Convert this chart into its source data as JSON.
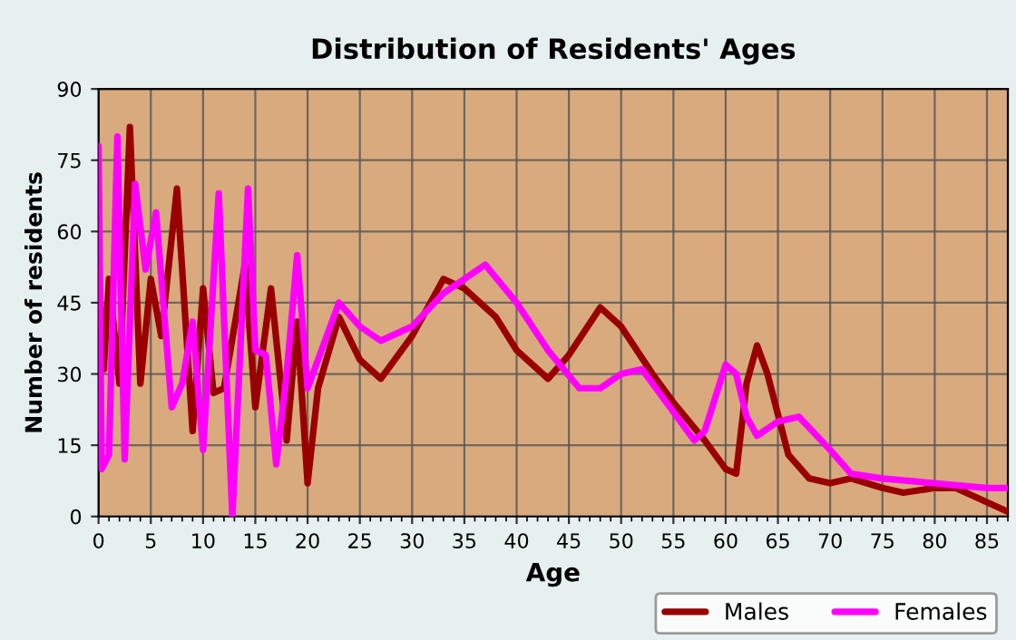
{
  "chart_data": {
    "type": "line",
    "title": "Distribution of Residents' Ages",
    "xlabel": "Age",
    "ylabel": "Number of residents",
    "xlim": [
      0,
      87
    ],
    "xticks": [
      0,
      5,
      10,
      15,
      20,
      25,
      30,
      35,
      40,
      45,
      50,
      55,
      60,
      65,
      70,
      75,
      80,
      85
    ],
    "ylim": [
      0,
      90
    ],
    "yticks": [
      0,
      15,
      30,
      45,
      60,
      75,
      90
    ],
    "grid": true,
    "legend": "bottom right",
    "marker": "none",
    "line_style": "solid",
    "series": [
      {
        "name": "Males",
        "color": "#990000",
        "x": [
          0,
          0.5,
          1,
          2,
          3,
          4,
          5,
          6,
          7.5,
          9,
          10,
          11,
          12,
          14,
          15,
          16.5,
          18,
          19,
          20,
          21,
          23,
          25,
          27,
          30,
          33,
          35,
          38,
          40,
          43,
          45,
          48,
          50,
          53,
          55,
          58,
          60,
          61,
          62,
          63,
          64,
          66,
          68,
          70,
          72,
          75,
          77,
          80,
          82,
          85,
          87
        ],
        "values": [
          52,
          31,
          50,
          28,
          82,
          28,
          50,
          38,
          69,
          18,
          48,
          26,
          27,
          53,
          23,
          48,
          16,
          41,
          7,
          27,
          42,
          33,
          29,
          38,
          50,
          48,
          42,
          35,
          29,
          34,
          44,
          40,
          30,
          24,
          16,
          10,
          9,
          28,
          36,
          30,
          13,
          8,
          7,
          8,
          6,
          5,
          6,
          6,
          3,
          1
        ]
      },
      {
        "name": "Females",
        "color": "#ff00ff",
        "x": [
          0,
          0.3,
          1,
          1.8,
          2.5,
          3.5,
          4.5,
          5.5,
          7,
          8,
          9,
          10,
          11.5,
          12.8,
          14.3,
          15,
          16,
          17,
          18,
          19,
          20,
          23,
          25,
          27,
          30,
          33,
          37,
          40,
          43,
          46,
          48,
          50,
          52,
          55,
          57,
          58,
          60,
          61,
          62,
          63,
          65,
          67,
          70,
          72,
          75,
          80,
          85,
          87
        ],
        "values": [
          78,
          10,
          13,
          80,
          12,
          70,
          52,
          64,
          23,
          28,
          41,
          14,
          68,
          0,
          69,
          35,
          34,
          11,
          30,
          55,
          27,
          45,
          40,
          37,
          40,
          47,
          53,
          45,
          35,
          27,
          27,
          30,
          31,
          22,
          16,
          18,
          32,
          30,
          21,
          17,
          20,
          21,
          14,
          9,
          8,
          7,
          6,
          6
        ]
      }
    ]
  }
}
